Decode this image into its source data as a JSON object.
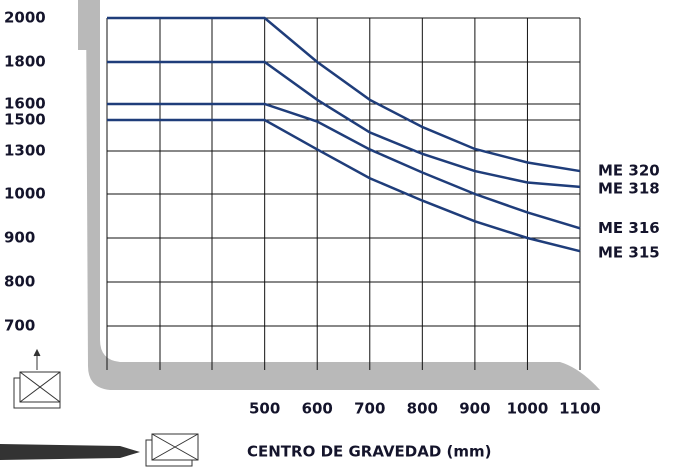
{
  "chart_data": {
    "type": "line",
    "x_label": "CENTRO DE GRAVEDAD (mm)",
    "x": [
      200,
      300,
      400,
      500,
      600,
      700,
      800,
      900,
      1000,
      1100
    ],
    "xlim": [
      200,
      1100
    ],
    "xticks": [
      500,
      600,
      700,
      800,
      900,
      1000,
      1100
    ],
    "yticks": [
      2000,
      1800,
      1600,
      1500,
      1300,
      1000,
      900,
      800,
      700
    ],
    "grid": true,
    "series": [
      {
        "name": "ME 320",
        "color": "#1f3d7a",
        "values": [
          2000,
          2000,
          2000,
          2000,
          1800,
          1620,
          1455,
          1313,
          1220,
          1160
        ]
      },
      {
        "name": "ME 318",
        "color": "#1f3d7a",
        "values": [
          1800,
          1800,
          1800,
          1800,
          1620,
          1420,
          1280,
          1160,
          1080,
          1050
        ]
      },
      {
        "name": "ME 316",
        "color": "#1f3d7a",
        "values": [
          1600,
          1600,
          1600,
          1600,
          1490,
          1310,
          1150,
          1000,
          958,
          922
        ]
      },
      {
        "name": "ME 315",
        "color": "#1f3d7a",
        "values": [
          1500,
          1500,
          1500,
          1500,
          1310,
          1110,
          985,
          938,
          900,
          870
        ]
      }
    ]
  }
}
